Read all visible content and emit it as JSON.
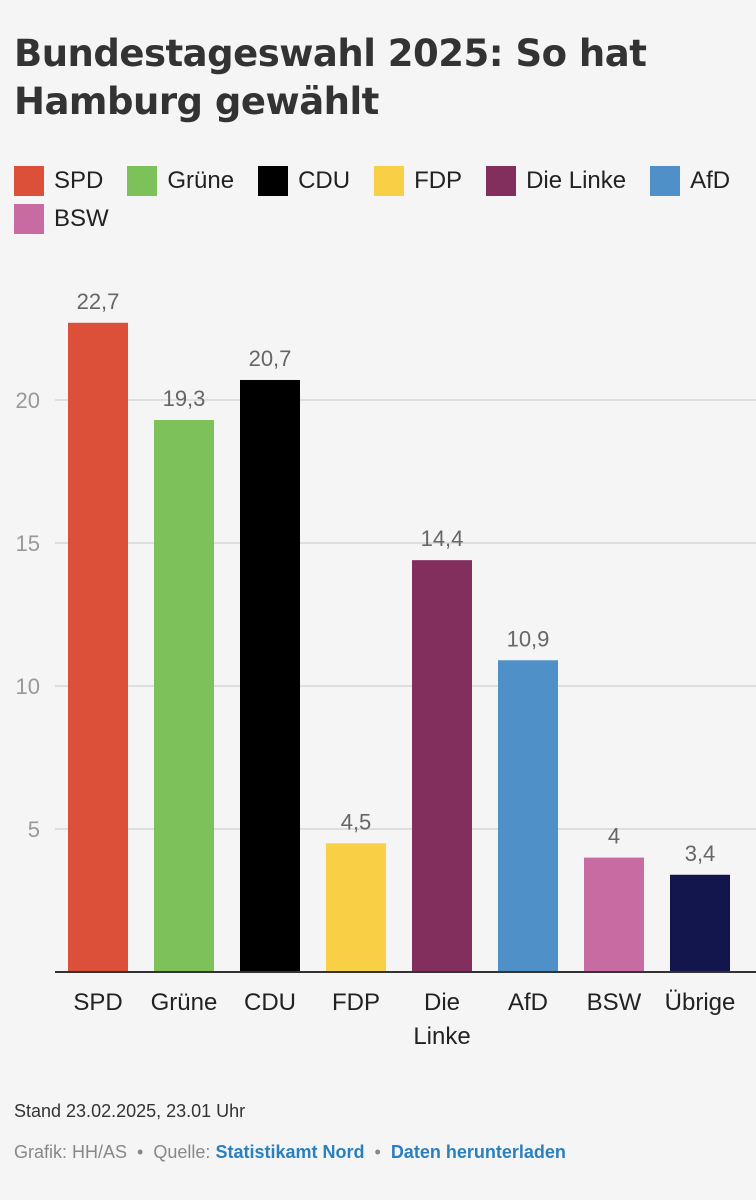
{
  "title": "Bundestageswahl 2025: So hat Hamburg gewählt",
  "legend": [
    {
      "label": "SPD",
      "color": "#dc503a"
    },
    {
      "label": "Grüne",
      "color": "#7cc15a"
    },
    {
      "label": "CDU",
      "color": "#000000"
    },
    {
      "label": "FDP",
      "color": "#f8cf45"
    },
    {
      "label": "Die Linke",
      "color": "#822f5e"
    },
    {
      "label": "AfD",
      "color": "#4f90c8"
    },
    {
      "label": "BSW",
      "color": "#c76ba2"
    }
  ],
  "chart_data": {
    "type": "bar",
    "categories": [
      "SPD",
      "Grüne",
      "CDU",
      "FDP",
      "Die\nLinke",
      "AfD",
      "BSW",
      "Übrige"
    ],
    "values": [
      22.7,
      19.3,
      20.7,
      4.5,
      14.4,
      10.9,
      4,
      3.4
    ],
    "value_labels": [
      "22,7",
      "19,3",
      "20,7",
      "4,5",
      "14,4",
      "10,9",
      "4",
      "3,4"
    ],
    "colors": [
      "#dc503a",
      "#7cc15a",
      "#000000",
      "#f8cf45",
      "#822f5e",
      "#4f90c8",
      "#c76ba2",
      "#12164c"
    ],
    "yticks": [
      5,
      10,
      15,
      20
    ],
    "ylim": [
      0,
      25
    ],
    "grid": true,
    "legend_placement": "top-left"
  },
  "footer": {
    "stand": "Stand 23.02.2025, 23.01 Uhr",
    "grafik": "Grafik: HH/AS",
    "quelle_prefix": "Quelle:",
    "quelle_link": "Statistikamt Nord",
    "download_link": "Daten herunterladen",
    "separator": "•"
  }
}
